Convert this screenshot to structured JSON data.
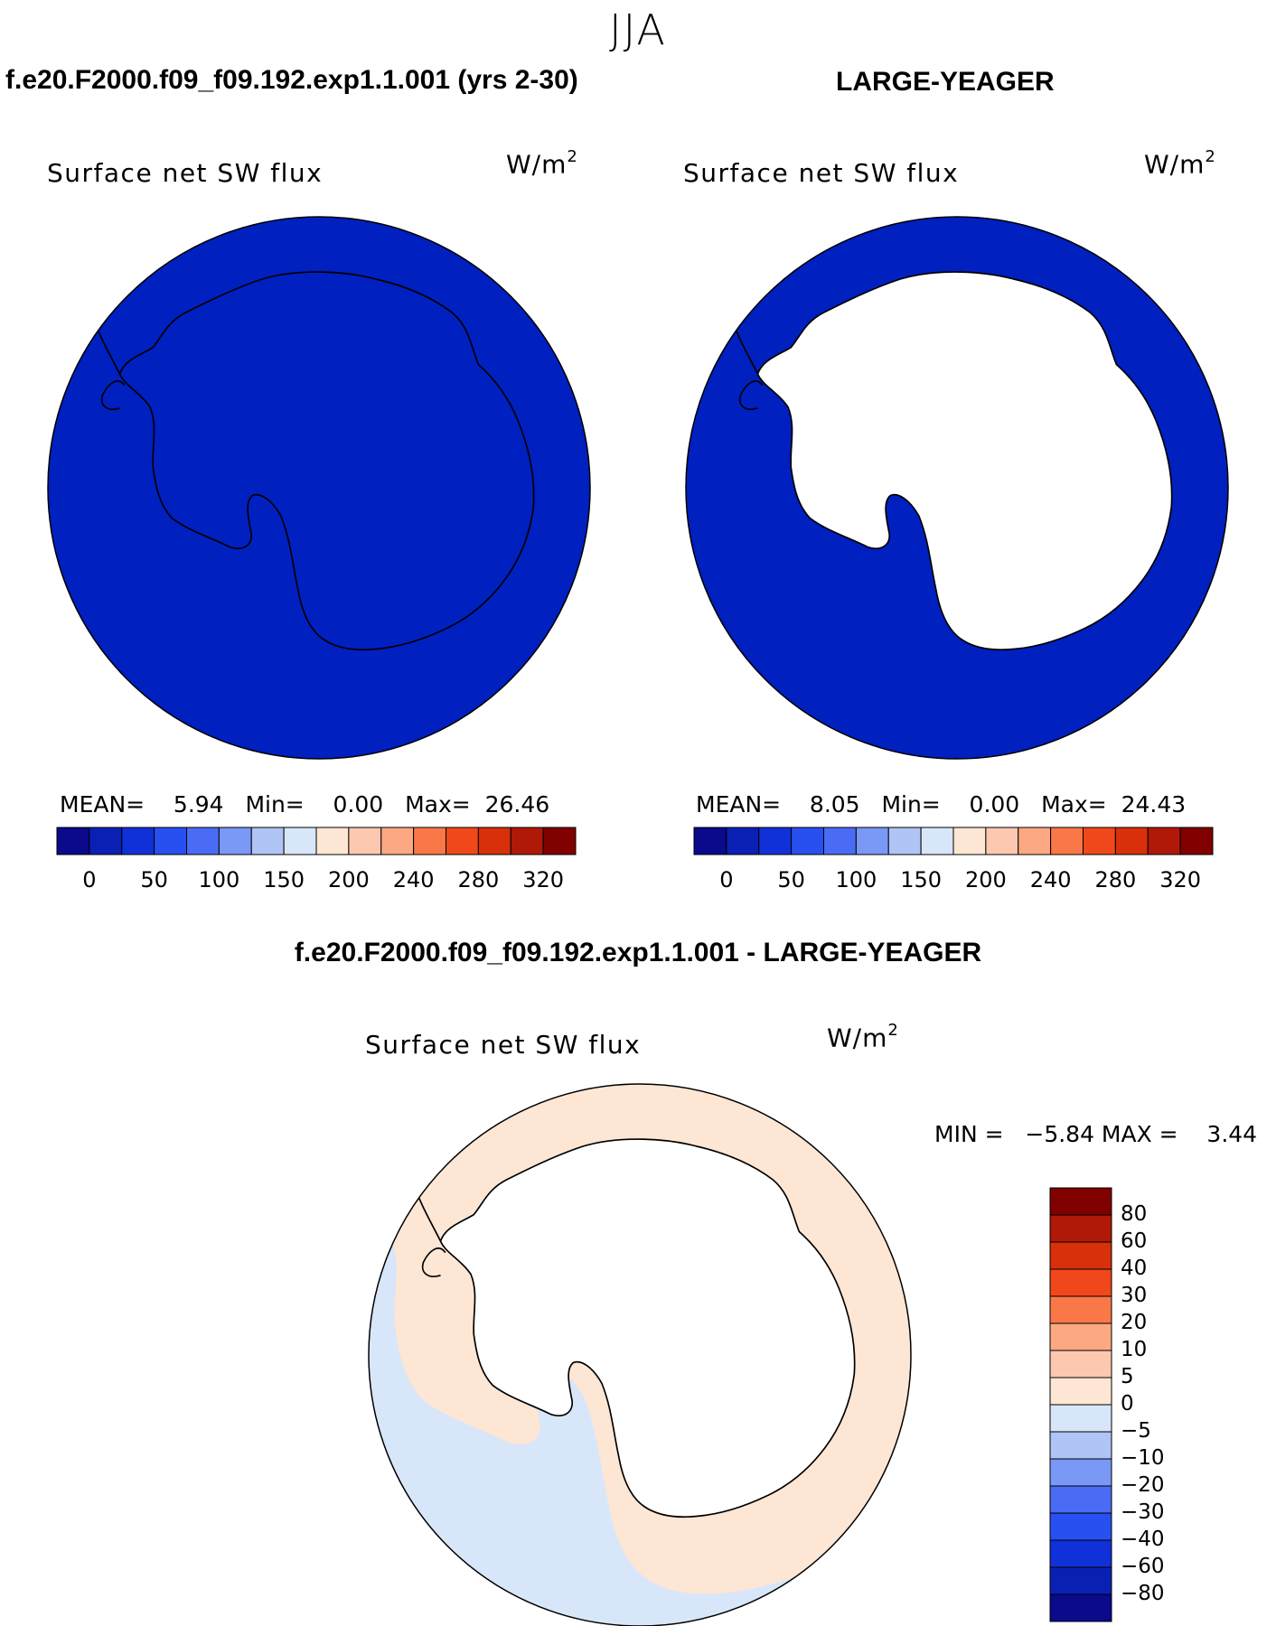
{
  "season": "JJA",
  "panels": {
    "left": {
      "title": "f.e20.F2000.f09_f09.192.exp1.1.001 (yrs 2-30)",
      "variable": "Surface net SW flux",
      "units_base": "W/m",
      "units_exp": "2",
      "stats": {
        "mean_label": "MEAN=",
        "mean": "5.94",
        "min_label": "Min=",
        "min": "0.00",
        "max_label": "Max=",
        "max": "26.46"
      }
    },
    "right": {
      "title": "LARGE-YEAGER",
      "variable": "Surface net SW flux",
      "units_base": "W/m",
      "units_exp": "2",
      "stats": {
        "mean_label": "MEAN=",
        "mean": "8.05",
        "min_label": "Min=",
        "min": "0.00",
        "max_label": "Max=",
        "max": "24.43"
      }
    },
    "diff": {
      "title": "f.e20.F2000.f09_f09.192.exp1.1.001 - LARGE-YEAGER",
      "variable": "Surface net SW flux",
      "units_base": "W/m",
      "units_exp": "2",
      "minmax": "MIN =   −5.84 MAX =    3.44"
    }
  },
  "colorbar_main": {
    "colors": [
      "#0a0a8a",
      "#0a20b4",
      "#1030d8",
      "#2850f0",
      "#4a6cf4",
      "#7a98f6",
      "#b0c4f6",
      "#d8e6fa",
      "#fde6d4",
      "#fcc8b0",
      "#fca882",
      "#fa7848",
      "#f0481a",
      "#d8300a",
      "#b01808",
      "#800000"
    ],
    "labels": [
      "0",
      "50",
      "100",
      "150",
      "200",
      "240",
      "280",
      "320"
    ]
  },
  "colorbar_diff": {
    "colors": [
      "#800000",
      "#b01808",
      "#d8300a",
      "#f0481a",
      "#fa7848",
      "#fca882",
      "#fcc8b0",
      "#fde6d4",
      "#d8e6fa",
      "#b0c4f6",
      "#7a98f6",
      "#4a6cf4",
      "#2850f0",
      "#1030d8",
      "#0a20b4",
      "#0a0a8a"
    ],
    "labels": [
      "80",
      "60",
      "40",
      "30",
      "20",
      "10",
      "5",
      "0",
      "−5",
      "−10",
      "−20",
      "−30",
      "−40",
      "−60",
      "−80"
    ]
  },
  "map_colors": {
    "field_low": "#0020c0",
    "land_missing": "#ffffff",
    "diff_neg": "#d8e6fa",
    "diff_pos": "#fde6d4",
    "coast": "#000000"
  }
}
